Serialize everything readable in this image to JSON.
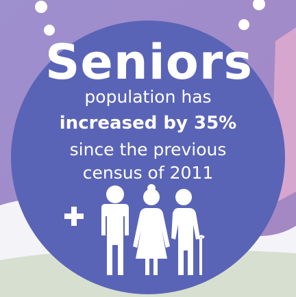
{
  "headline": "Seniors",
  "line1": "population has",
  "line2": "increased by 35%",
  "line3": "since the previous",
  "line4": "census of 2011",
  "icons": [
    "plus-icon",
    "seniors-group-icon"
  ],
  "colors": {
    "background_purple": "#a68fca",
    "circle_blue": "#5a64b6",
    "hill_white": "#f4f4f8",
    "ground_green": "#d7dfd0",
    "pink_shape": "#d7a6cf",
    "text": "#ffffff"
  }
}
